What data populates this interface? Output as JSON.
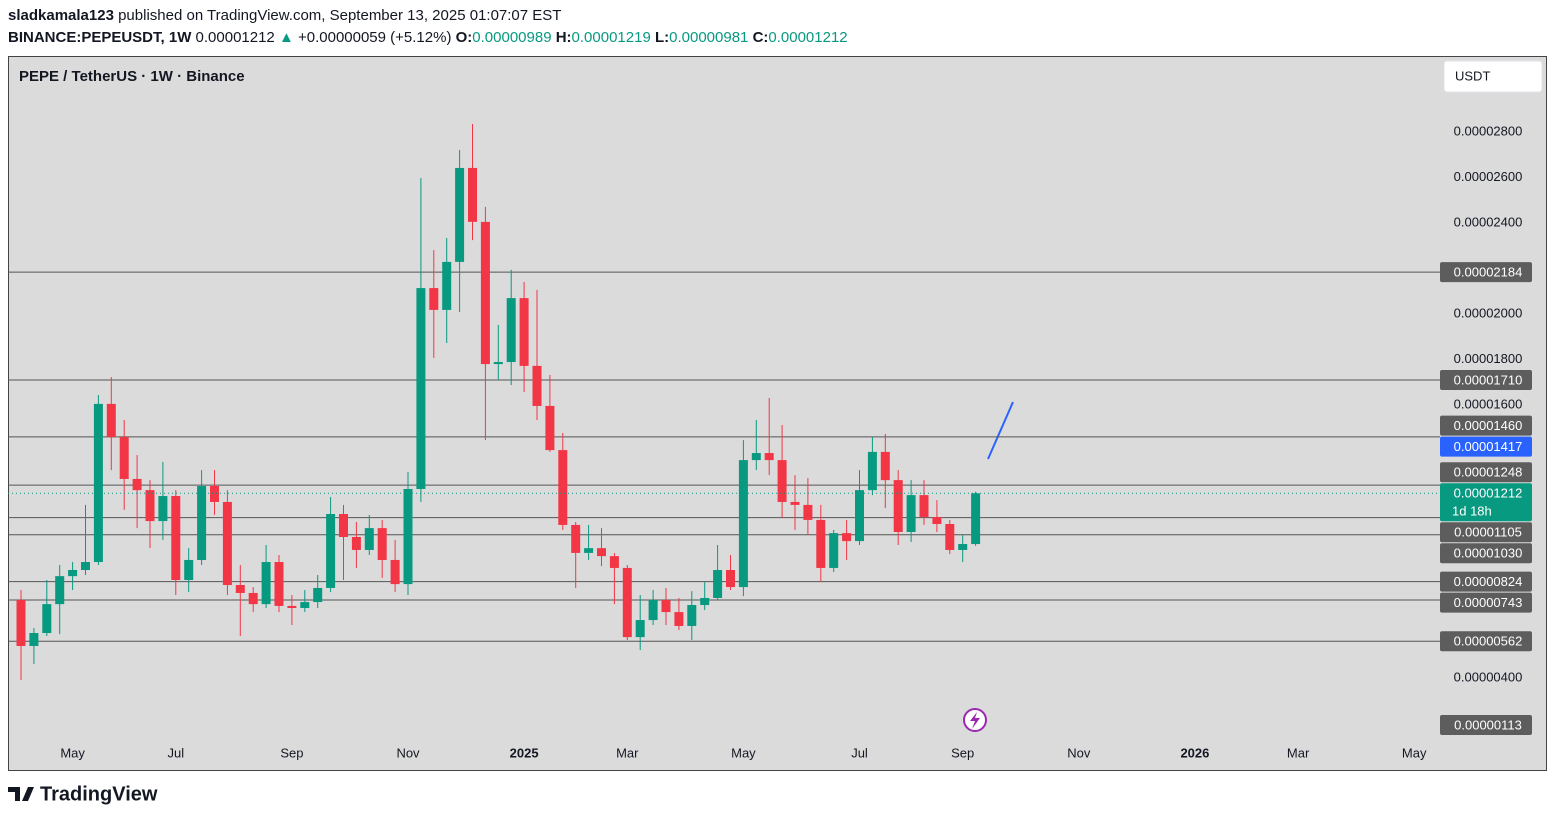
{
  "header": {
    "author": "sladkamala123",
    "published": "published on TradingView.com, September 13, 2025 01:07:07 EST",
    "symbol": "BINANCE:PEPEUSDT, 1W",
    "price": "0.00001212",
    "arrow": "▲",
    "change": "+0.00000059 (+5.12%)",
    "ohlc": [
      {
        "label": "O:",
        "value": "0.00000989"
      },
      {
        "label": "H:",
        "value": "0.00001219"
      },
      {
        "label": "L:",
        "value": "0.00000981"
      },
      {
        "label": "C:",
        "value": "0.00001212"
      }
    ]
  },
  "footer": {
    "brand": "TradingView"
  },
  "chart_data": {
    "type": "candlestick",
    "title": "PEPE / TetherUS · 1W · Binance",
    "currency": "USDT",
    "up_color": "#089981",
    "down_color": "#f23645",
    "grid": false,
    "ylim": [
      1.19e-06,
      3.134e-05
    ],
    "yticks": [
      {
        "value": 2.8e-05,
        "label": "0.00002800"
      },
      {
        "value": 2.6e-05,
        "label": "0.00002600"
      },
      {
        "value": 2.4e-05,
        "label": "0.00002400"
      },
      {
        "value": 2e-05,
        "label": "0.00002000"
      },
      {
        "value": 1.8e-05,
        "label": "0.00001800"
      },
      {
        "value": 1.6e-05,
        "label": "0.00001600"
      },
      {
        "value": 4e-06,
        "label": "0.00000400"
      }
    ],
    "categories": [
      null,
      null,
      null,
      null,
      "May",
      null,
      null,
      null,
      null,
      null,
      null,
      null,
      "Jul",
      null,
      null,
      null,
      null,
      null,
      null,
      null,
      null,
      "Sep",
      null,
      null,
      null,
      null,
      null,
      null,
      null,
      null,
      "Nov",
      null,
      null,
      null,
      null,
      null,
      null,
      null,
      null,
      "2025",
      null,
      null,
      null,
      null,
      null,
      null,
      null,
      "Mar",
      null,
      null,
      null,
      null,
      null,
      null,
      null,
      null,
      "May",
      null,
      null,
      null,
      null,
      null,
      null,
      null,
      null,
      "Jul",
      null,
      null,
      null,
      null,
      null,
      null,
      null,
      "Sep",
      null,
      null,
      null,
      null,
      null,
      null,
      null,
      null,
      "Nov",
      null,
      null,
      null,
      null,
      null,
      null,
      null,
      null,
      "2026",
      null,
      null,
      null,
      null,
      null,
      null,
      null,
      "Mar",
      null,
      null,
      null,
      null,
      null,
      null,
      null,
      null,
      "May"
    ],
    "open": [
      7.43e-06,
      5.41e-06,
      5.98e-06,
      7.25e-06,
      8.48e-06,
      8.75e-06,
      9.1e-06,
      1.605e-05,
      1.459e-05,
      1.275e-05,
      1.226e-05,
      1.09e-05,
      1.2e-05,
      8.31e-06,
      9.19e-06,
      1.244e-05,
      1.174e-05,
      8.09e-06,
      7.74e-06,
      7.25e-06,
      9.1e-06,
      7.17e-06,
      7.08e-06,
      7.34e-06,
      7.96e-06,
      1.121e-05,
      1.02e-05,
      9.63e-06,
      1.059e-05,
      9.19e-06,
      8.13e-06,
      1.231e-05,
      2.114e-05,
      2.018e-05,
      2.229e-05,
      2.642e-05,
      2.405e-05,
      1.78e-05,
      1.789e-05,
      2.07e-05,
      1.772e-05,
      1.596e-05,
      1.402e-05,
      1.073e-05,
      9.5e-06,
      9.71e-06,
      9.36e-06,
      8.84e-06,
      5.8e-06,
      6.55e-06,
      7.43e-06,
      6.9e-06,
      6.29e-06,
      7.21e-06,
      7.52e-06,
      8.75e-06,
      8e-06,
      1.358e-05,
      1.389e-05,
      1.358e-05,
      1.174e-05,
      1.161e-05,
      1.095e-05,
      8.84e-06,
      1.037e-05,
      1.002e-05,
      1.226e-05,
      1.394e-05,
      1.27e-05,
      1.042e-05,
      1.204e-05,
      1.108e-05,
      1.077e-05,
      9.63e-06,
      9.89e-06,
      null,
      null,
      null,
      null,
      null,
      null,
      null,
      null,
      null,
      null,
      null,
      null,
      null,
      null,
      null,
      null,
      null,
      null,
      null,
      null,
      null,
      null,
      null,
      null,
      null,
      null,
      null,
      null,
      null,
      null,
      null,
      null,
      null,
      null
    ],
    "high": [
      7.87e-06,
      6.2e-06,
      8.31e-06,
      8.97e-06,
      9.1e-06,
      1.161e-05,
      1.644e-05,
      1.723e-05,
      1.534e-05,
      1.38e-05,
      1.27e-05,
      1.35e-05,
      1.226e-05,
      9.71e-06,
      1.314e-05,
      1.314e-05,
      1.226e-05,
      8.97e-06,
      8e-06,
      9.85e-06,
      9.41e-06,
      7.65e-06,
      7.87e-06,
      8.53e-06,
      1.196e-05,
      1.161e-05,
      1.086e-05,
      1.117e-05,
      1.095e-05,
      1.007e-05,
      1.306e-05,
      2.598e-05,
      2.281e-05,
      2.334e-05,
      2.721e-05,
      2.835e-05,
      2.471e-05,
      1.952e-05,
      2.194e-05,
      2.141e-05,
      2.106e-05,
      1.732e-05,
      1.477e-05,
      1.086e-05,
      1.073e-05,
      1.059e-05,
      9.5e-06,
      8.97e-06,
      7.65e-06,
      7.87e-06,
      7.96e-06,
      7.52e-06,
      7.82e-06,
      8.22e-06,
      9.85e-06,
      9.41e-06,
      1.446e-05,
      1.534e-05,
      1.631e-05,
      1.512e-05,
      1.292e-05,
      1.279e-05,
      1.161e-05,
      1.051e-05,
      1.095e-05,
      1.314e-05,
      1.459e-05,
      1.473e-05,
      1.314e-05,
      1.27e-05,
      1.27e-05,
      1.182e-05,
      1.095e-05,
      1.029e-05,
      1.219e-05,
      null,
      null,
      null,
      null,
      null,
      null,
      null,
      null,
      null,
      null,
      null,
      null,
      null,
      null,
      null,
      null,
      null,
      null,
      null,
      null,
      null,
      null,
      null,
      null,
      null,
      null,
      null,
      null,
      null,
      null,
      null,
      null,
      null,
      null
    ],
    "low": [
      3.91e-06,
      4.62e-06,
      5.85e-06,
      5.93e-06,
      7.87e-06,
      8.53e-06,
      8.97e-06,
      1.314e-05,
      1.139e-05,
      1.059e-05,
      9.71e-06,
      1.007e-05,
      7.65e-06,
      7.78e-06,
      8.97e-06,
      1.117e-05,
      7.65e-06,
      5.85e-06,
      6.9e-06,
      7.08e-06,
      6.9e-06,
      6.33e-06,
      6.9e-06,
      7.08e-06,
      7.78e-06,
      8.31e-06,
      8.84e-06,
      9.41e-06,
      8.4e-06,
      7.78e-06,
      7.65e-06,
      1.174e-05,
      1.807e-05,
      1.873e-05,
      2.009e-05,
      2.325e-05,
      1.446e-05,
      1.71e-05,
      1.688e-05,
      1.657e-05,
      1.534e-05,
      1.394e-05,
      1.051e-05,
      7.96e-06,
      9.19e-06,
      8.92e-06,
      7.25e-06,
      5.67e-06,
      5.23e-06,
      6.33e-06,
      6.33e-06,
      6.11e-06,
      5.67e-06,
      6.99e-06,
      7.43e-06,
      7.87e-06,
      7.6e-06,
      1.314e-05,
      1.292e-05,
      1.103e-05,
      1.051e-05,
      1.029e-05,
      8.22e-06,
      8.66e-06,
      9.19e-06,
      9.85e-06,
      1.204e-05,
      1.147e-05,
      9.85e-06,
      9.98e-06,
      1.073e-05,
      1.042e-05,
      9.45e-06,
      9.1e-06,
      9.81e-06,
      null,
      null,
      null,
      null,
      null,
      null,
      null,
      null,
      null,
      null,
      null,
      null,
      null,
      null,
      null,
      null,
      null,
      null,
      null,
      null,
      null,
      null,
      null,
      null,
      null,
      null,
      null,
      null,
      null,
      null,
      null,
      null,
      null,
      null
    ],
    "close": [
      5.41e-06,
      5.98e-06,
      7.25e-06,
      8.48e-06,
      8.75e-06,
      9.1e-06,
      1.605e-05,
      1.459e-05,
      1.275e-05,
      1.226e-05,
      1.09e-05,
      1.2e-05,
      8.31e-06,
      9.19e-06,
      1.244e-05,
      1.174e-05,
      8.09e-06,
      7.74e-06,
      7.25e-06,
      9.1e-06,
      7.17e-06,
      7.08e-06,
      7.34e-06,
      7.96e-06,
      1.121e-05,
      1.02e-05,
      9.63e-06,
      1.059e-05,
      9.19e-06,
      8.13e-06,
      1.231e-05,
      2.114e-05,
      2.018e-05,
      2.229e-05,
      2.642e-05,
      2.405e-05,
      1.78e-05,
      1.789e-05,
      2.07e-05,
      1.772e-05,
      1.596e-05,
      1.402e-05,
      1.073e-05,
      9.5e-06,
      9.71e-06,
      9.36e-06,
      8.84e-06,
      5.8e-06,
      6.55e-06,
      7.43e-06,
      6.9e-06,
      6.29e-06,
      7.21e-06,
      7.52e-06,
      8.75e-06,
      8e-06,
      1.358e-05,
      1.389e-05,
      1.358e-05,
      1.174e-05,
      1.161e-05,
      1.095e-05,
      8.84e-06,
      1.037e-05,
      1.002e-05,
      1.226e-05,
      1.394e-05,
      1.27e-05,
      1.042e-05,
      1.204e-05,
      1.108e-05,
      1.077e-05,
      9.63e-06,
      9.89e-06,
      1.212e-05,
      null,
      null,
      null,
      null,
      null,
      null,
      null,
      null,
      null,
      null,
      null,
      null,
      null,
      null,
      null,
      null,
      null,
      null,
      null,
      null,
      null,
      null,
      null,
      null,
      null,
      null,
      null,
      null,
      null,
      null,
      null,
      null,
      null,
      null
    ],
    "price_lines": [
      {
        "value": 2.184e-05,
        "label": "0.00002184"
      },
      {
        "value": 1.71e-05,
        "label": "0.00001710"
      },
      {
        "value": 1.46e-05,
        "label": "0.00001460"
      },
      {
        "value": 1.248e-05,
        "label": "0.00001248"
      },
      {
        "value": 1.105e-05,
        "label": "0.00001105"
      },
      {
        "value": 1.03e-05,
        "label": "0.00001030"
      },
      {
        "value": 8.24e-06,
        "label": "0.00000824"
      },
      {
        "value": 7.43e-06,
        "label": "0.00000743"
      },
      {
        "value": 5.62e-06,
        "label": "0.00000562"
      },
      {
        "value": 1.13e-06,
        "label": "0.00000113"
      }
    ],
    "marker_label": {
      "value": 1.417e-05,
      "label": "0.00001417",
      "color": "#2962ff"
    },
    "last_price": {
      "value": 1.212e-05,
      "label": "0.00001212",
      "countdown": "1d 18h"
    }
  }
}
